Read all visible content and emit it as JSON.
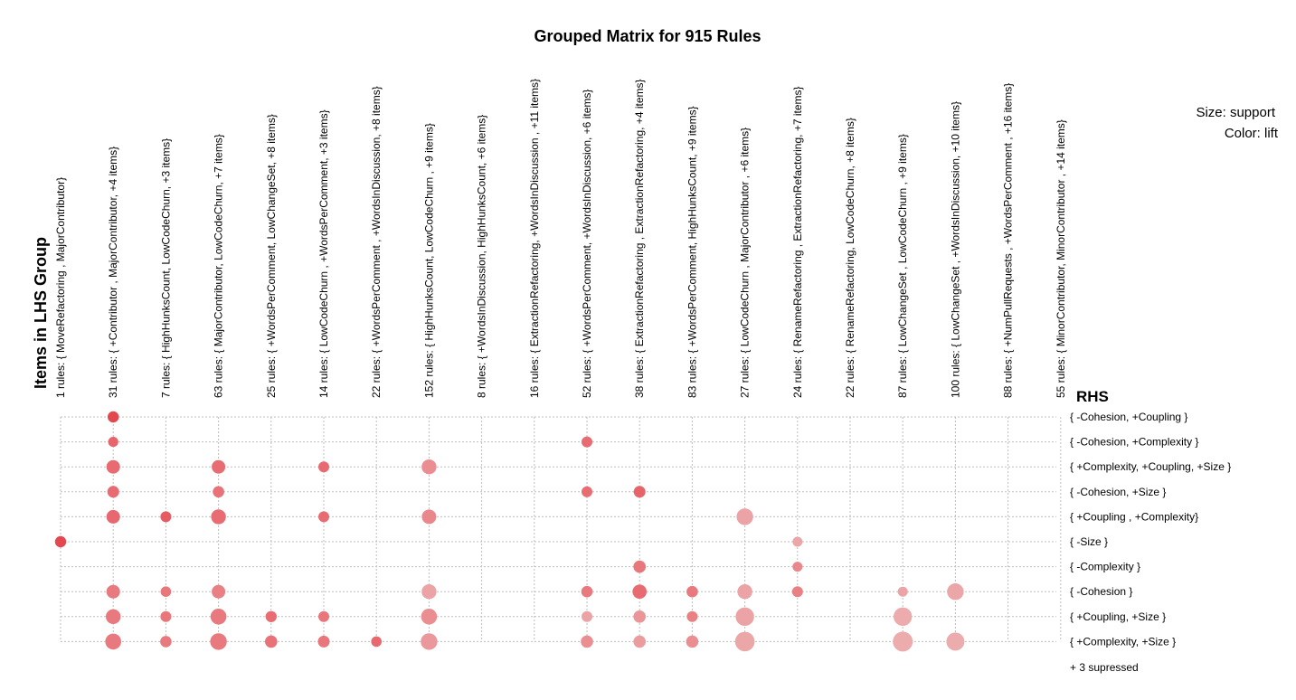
{
  "chart_data": {
    "type": "scatter",
    "title": "Grouped Matrix for 915 Rules",
    "x_axis_label": "Items in LHS Group",
    "y_axis_label": "RHS",
    "legend": {
      "size": "Size: support",
      "color": "Color: lift"
    },
    "footnote": "+ 3 supressed",
    "grid": true,
    "lhs_groups": [
      "1 rules: { MoveRefactoring ,  MajorContributor}",
      "31 rules: { +Contributor ,  MajorContributor, +4 items}",
      "7 rules: { HighHunksCount,  LowCodeChurn, +3 items}",
      "63 rules: { MajorContributor,  LowCodeChurn, +7 items}",
      "25 rules: { +WordsPerComment,  LowChangeSet, +8 items}",
      "14 rules: { LowCodeChurn ,  +WordsPerComment, +3 items}",
      "22 rules: { +WordsPerComment ,  +WordsInDiscussion, +8 items}",
      "152 rules: { HighHunksCount,  LowCodeChurn , +9 items}",
      "8 rules: { +WordsInDiscussion,  HighHunksCount, +6 items}",
      "16 rules: { ExtractionRefactoring,  +WordsInDiscussion , +11 items}",
      "52 rules: { +WordsPerComment,  +WordsInDiscussion, +6 items}",
      "38 rules: { ExtractionRefactoring ,  ExtractionRefactoring, +4 items}",
      "83 rules: { +WordsPerComment,  HighHunksCount, +9 items}",
      "27 rules: { LowCodeChurn ,  MajorContributor , +6 items}",
      "24 rules: { RenameRefactoring ,  ExtractionRefactoring, +7 items}",
      "22 rules: { RenameRefactoring,  LowCodeChurn, +8 items}",
      "87 rules: { LowChangeSet ,  LowCodeChurn , +9 items}",
      "100 rules: { LowChangeSet ,  +WordsInDiscussion, +10 items}",
      "88 rules: { +NumPullRequests ,  +WordsPerComment , +16 items}",
      "55 rules: { MinorContributor,  MinorContributor , +14 items}"
    ],
    "rhs_items": [
      "{ -Cohesion, +Coupling }",
      "{ -Cohesion, +Complexity }",
      "{ +Complexity,  +Coupling, +Size }",
      "{ -Cohesion, +Size }",
      "{ +Coupling , +Complexity}",
      "{ -Size }",
      "{ -Complexity }",
      "{ -Cohesion }",
      "{ +Coupling, +Size }",
      "{ +Complexity,  +Size }"
    ],
    "points_note": "Each point: lhs = LHS group index, rhs = RHS item index, support = relative size (0-1), lift = relative color intensity (0-1)",
    "points": [
      {
        "lhs": 0,
        "rhs": 5,
        "support": 0.32,
        "lift": 0.95
      },
      {
        "lhs": 1,
        "rhs": 0,
        "support": 0.32,
        "lift": 0.95
      },
      {
        "lhs": 1,
        "rhs": 1,
        "support": 0.26,
        "lift": 0.75
      },
      {
        "lhs": 1,
        "rhs": 2,
        "support": 0.45,
        "lift": 0.7
      },
      {
        "lhs": 1,
        "rhs": 3,
        "support": 0.35,
        "lift": 0.7
      },
      {
        "lhs": 1,
        "rhs": 4,
        "support": 0.45,
        "lift": 0.72
      },
      {
        "lhs": 1,
        "rhs": 7,
        "support": 0.45,
        "lift": 0.6
      },
      {
        "lhs": 1,
        "rhs": 8,
        "support": 0.52,
        "lift": 0.6
      },
      {
        "lhs": 1,
        "rhs": 9,
        "support": 0.58,
        "lift": 0.6
      },
      {
        "lhs": 2,
        "rhs": 4,
        "support": 0.3,
        "lift": 0.8
      },
      {
        "lhs": 2,
        "rhs": 7,
        "support": 0.28,
        "lift": 0.62
      },
      {
        "lhs": 2,
        "rhs": 8,
        "support": 0.3,
        "lift": 0.62
      },
      {
        "lhs": 2,
        "rhs": 9,
        "support": 0.33,
        "lift": 0.6
      },
      {
        "lhs": 3,
        "rhs": 2,
        "support": 0.45,
        "lift": 0.68
      },
      {
        "lhs": 3,
        "rhs": 3,
        "support": 0.33,
        "lift": 0.65
      },
      {
        "lhs": 3,
        "rhs": 4,
        "support": 0.52,
        "lift": 0.68
      },
      {
        "lhs": 3,
        "rhs": 7,
        "support": 0.45,
        "lift": 0.55
      },
      {
        "lhs": 3,
        "rhs": 8,
        "support": 0.58,
        "lift": 0.6
      },
      {
        "lhs": 3,
        "rhs": 9,
        "support": 0.62,
        "lift": 0.6
      },
      {
        "lhs": 4,
        "rhs": 8,
        "support": 0.32,
        "lift": 0.68
      },
      {
        "lhs": 4,
        "rhs": 9,
        "support": 0.38,
        "lift": 0.65
      },
      {
        "lhs": 5,
        "rhs": 2,
        "support": 0.3,
        "lift": 0.7
      },
      {
        "lhs": 5,
        "rhs": 4,
        "support": 0.3,
        "lift": 0.7
      },
      {
        "lhs": 5,
        "rhs": 8,
        "support": 0.3,
        "lift": 0.62
      },
      {
        "lhs": 5,
        "rhs": 9,
        "support": 0.35,
        "lift": 0.62
      },
      {
        "lhs": 6,
        "rhs": 9,
        "support": 0.28,
        "lift": 0.72
      },
      {
        "lhs": 7,
        "rhs": 2,
        "support": 0.52,
        "lift": 0.45
      },
      {
        "lhs": 7,
        "rhs": 4,
        "support": 0.5,
        "lift": 0.5
      },
      {
        "lhs": 7,
        "rhs": 7,
        "support": 0.52,
        "lift": 0.3
      },
      {
        "lhs": 7,
        "rhs": 8,
        "support": 0.58,
        "lift": 0.45
      },
      {
        "lhs": 7,
        "rhs": 9,
        "support": 0.62,
        "lift": 0.38
      },
      {
        "lhs": 10,
        "rhs": 1,
        "support": 0.3,
        "lift": 0.7
      },
      {
        "lhs": 10,
        "rhs": 3,
        "support": 0.3,
        "lift": 0.68
      },
      {
        "lhs": 10,
        "rhs": 7,
        "support": 0.33,
        "lift": 0.6
      },
      {
        "lhs": 10,
        "rhs": 8,
        "support": 0.3,
        "lift": 0.3
      },
      {
        "lhs": 10,
        "rhs": 9,
        "support": 0.38,
        "lift": 0.45
      },
      {
        "lhs": 11,
        "rhs": 3,
        "support": 0.35,
        "lift": 0.75
      },
      {
        "lhs": 11,
        "rhs": 6,
        "support": 0.38,
        "lift": 0.62
      },
      {
        "lhs": 11,
        "rhs": 7,
        "support": 0.48,
        "lift": 0.7
      },
      {
        "lhs": 11,
        "rhs": 8,
        "support": 0.38,
        "lift": 0.4
      },
      {
        "lhs": 11,
        "rhs": 9,
        "support": 0.38,
        "lift": 0.35
      },
      {
        "lhs": 12,
        "rhs": 7,
        "support": 0.33,
        "lift": 0.6
      },
      {
        "lhs": 12,
        "rhs": 8,
        "support": 0.3,
        "lift": 0.55
      },
      {
        "lhs": 12,
        "rhs": 9,
        "support": 0.38,
        "lift": 0.45
      },
      {
        "lhs": 13,
        "rhs": 4,
        "support": 0.62,
        "lift": 0.3
      },
      {
        "lhs": 13,
        "rhs": 7,
        "support": 0.52,
        "lift": 0.3
      },
      {
        "lhs": 13,
        "rhs": 8,
        "support": 0.72,
        "lift": 0.3
      },
      {
        "lhs": 13,
        "rhs": 9,
        "support": 0.78,
        "lift": 0.28
      },
      {
        "lhs": 14,
        "rhs": 5,
        "support": 0.25,
        "lift": 0.28
      },
      {
        "lhs": 14,
        "rhs": 6,
        "support": 0.25,
        "lift": 0.5
      },
      {
        "lhs": 14,
        "rhs": 7,
        "support": 0.3,
        "lift": 0.55
      },
      {
        "lhs": 16,
        "rhs": 7,
        "support": 0.25,
        "lift": 0.3
      },
      {
        "lhs": 16,
        "rhs": 8,
        "support": 0.72,
        "lift": 0.25
      },
      {
        "lhs": 16,
        "rhs": 9,
        "support": 0.8,
        "lift": 0.25
      },
      {
        "lhs": 17,
        "rhs": 7,
        "support": 0.62,
        "lift": 0.28
      },
      {
        "lhs": 17,
        "rhs": 9,
        "support": 0.7,
        "lift": 0.25
      }
    ]
  }
}
